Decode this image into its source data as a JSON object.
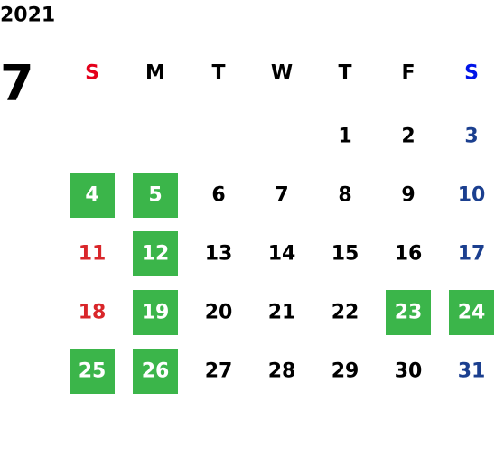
{
  "calendar": {
    "year": "2021",
    "month": "7",
    "weekdays": [
      "S",
      "M",
      "T",
      "W",
      "T",
      "F",
      "S"
    ],
    "weeks": [
      [
        null,
        null,
        null,
        null,
        {
          "day": 1,
          "highlight": false
        },
        {
          "day": 2,
          "highlight": false
        },
        {
          "day": 3,
          "highlight": false
        }
      ],
      [
        {
          "day": 4,
          "highlight": true
        },
        {
          "day": 5,
          "highlight": true
        },
        {
          "day": 6,
          "highlight": false
        },
        {
          "day": 7,
          "highlight": false
        },
        {
          "day": 8,
          "highlight": false
        },
        {
          "day": 9,
          "highlight": false
        },
        {
          "day": 10,
          "highlight": false
        }
      ],
      [
        {
          "day": 11,
          "highlight": false
        },
        {
          "day": 12,
          "highlight": true
        },
        {
          "day": 13,
          "highlight": false
        },
        {
          "day": 14,
          "highlight": false
        },
        {
          "day": 15,
          "highlight": false
        },
        {
          "day": 16,
          "highlight": false
        },
        {
          "day": 17,
          "highlight": false
        }
      ],
      [
        {
          "day": 18,
          "highlight": false
        },
        {
          "day": 19,
          "highlight": true
        },
        {
          "day": 20,
          "highlight": false
        },
        {
          "day": 21,
          "highlight": false
        },
        {
          "day": 22,
          "highlight": false
        },
        {
          "day": 23,
          "highlight": true
        },
        {
          "day": 24,
          "highlight": true
        }
      ],
      [
        {
          "day": 25,
          "highlight": true
        },
        {
          "day": 26,
          "highlight": true
        },
        {
          "day": 27,
          "highlight": false
        },
        {
          "day": 28,
          "highlight": false
        },
        {
          "day": 29,
          "highlight": false
        },
        {
          "day": 30,
          "highlight": false
        },
        {
          "day": 31,
          "highlight": false
        }
      ]
    ]
  }
}
